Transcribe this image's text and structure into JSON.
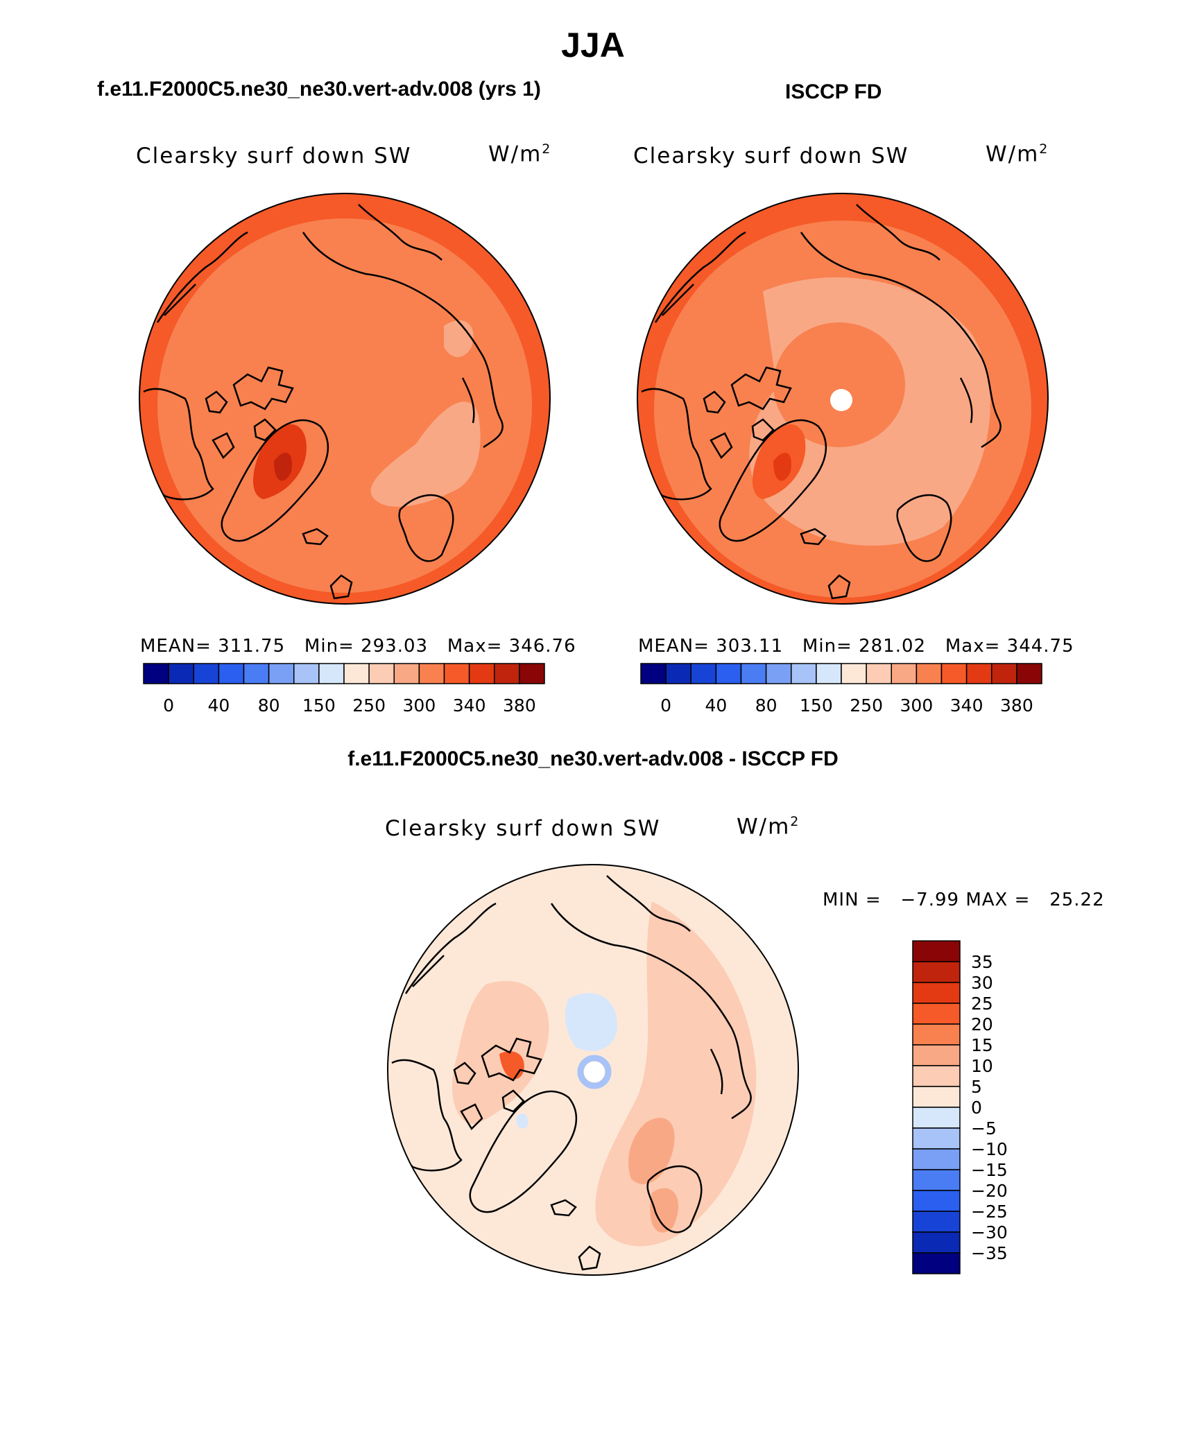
{
  "title": "JJA",
  "panel_model": {
    "case_title": "f.e11.F2000C5.ne30_ne30.vert-adv.008 (yrs 1)",
    "variable": "Clearsky surf down SW",
    "units": "W/m",
    "units_exp": "2",
    "stats": "MEAN= 311.75   Min= 293.03   Max= 346.76"
  },
  "panel_obs": {
    "case_title": "ISCCP FD",
    "variable": "Clearsky surf down SW",
    "units": "W/m",
    "units_exp": "2",
    "stats": "MEAN= 303.11   Min= 281.02   Max= 344.75"
  },
  "panel_diff": {
    "case_title": "f.e11.F2000C5.ne30_ne30.vert-adv.008 - ISCCP FD",
    "variable": "Clearsky surf down SW",
    "units": "W/m",
    "units_exp": "2",
    "minmax": "MIN =   −7.99 MAX =   25.22"
  },
  "colors": {
    "abs_scale": [
      "#000080",
      "#0a2ab5",
      "#1744d6",
      "#2a5ff0",
      "#4a7df4",
      "#7aa0f5",
      "#a8c3f7",
      "#d6e7fb",
      "#fde8d8",
      "#fcccb4",
      "#f9a885",
      "#f8814f",
      "#f55a28",
      "#e33a13",
      "#c0240c",
      "#8a0606"
    ],
    "diff_scale": [
      "#8a0606",
      "#c0240c",
      "#e33a13",
      "#f55a28",
      "#f8814f",
      "#f9a885",
      "#fcccb4",
      "#fde8d8",
      "#d6e7fb",
      "#a8c3f7",
      "#7aa0f5",
      "#4a7df4",
      "#2a5ff0",
      "#1744d6",
      "#0a2ab5",
      "#000080"
    ]
  },
  "chart_data": [
    {
      "type": "heatmap",
      "name": "model",
      "projection": "north polar stereographic",
      "legend_labels": [
        "0",
        "40",
        "80",
        "150",
        "250",
        "300",
        "340",
        "380"
      ],
      "levels": [
        0,
        20,
        40,
        60,
        80,
        110,
        150,
        200,
        250,
        280,
        300,
        320,
        340,
        360,
        380
      ],
      "mean": 311.75,
      "min": 293.03,
      "max": 346.76
    },
    {
      "type": "heatmap",
      "name": "observations",
      "projection": "north polar stereographic",
      "legend_labels": [
        "0",
        "40",
        "80",
        "150",
        "250",
        "300",
        "340",
        "380"
      ],
      "levels": [
        0,
        20,
        40,
        60,
        80,
        110,
        150,
        200,
        250,
        280,
        300,
        320,
        340,
        360,
        380
      ],
      "mean": 303.11,
      "min": 281.02,
      "max": 344.75
    },
    {
      "type": "heatmap",
      "name": "difference",
      "projection": "north polar stereographic",
      "legend_labels": [
        "35",
        "30",
        "25",
        "20",
        "15",
        "10",
        "5",
        "0",
        "−5",
        "−10",
        "−15",
        "−20",
        "−25",
        "−30",
        "−35"
      ],
      "levels": [
        35,
        30,
        25,
        20,
        15,
        10,
        5,
        0,
        -5,
        -10,
        -15,
        -20,
        -25,
        -30,
        -35
      ],
      "min": -7.99,
      "max": 25.22
    }
  ]
}
